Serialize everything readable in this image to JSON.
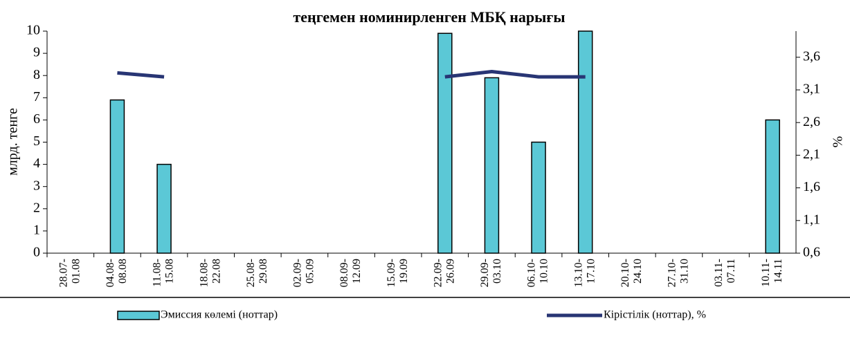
{
  "chart_data": {
    "type": "bar",
    "title": "теңгемен номинирленген МБҚ нарығы",
    "ylabel": "млрд. тенге",
    "y2label": "%",
    "categories": [
      [
        "28.07-",
        "01.08"
      ],
      [
        "04.08-",
        "08.08"
      ],
      [
        "11.08-",
        "15.08"
      ],
      [
        "18.08-",
        "22.08"
      ],
      [
        "25.08-",
        "29.08"
      ],
      [
        "02.09-",
        "05.09"
      ],
      [
        "08.09-",
        "12.09"
      ],
      [
        "15.09-",
        "19.09"
      ],
      [
        "22.09-",
        "26.09"
      ],
      [
        "29.09-",
        "03.10"
      ],
      [
        "06.10-",
        "10.10"
      ],
      [
        "13.10-",
        "17.10"
      ],
      [
        "20.10-",
        "24.10"
      ],
      [
        "27.10-",
        "31.10"
      ],
      [
        "03.11-",
        "07.11"
      ],
      [
        "10.11-",
        "14.11"
      ]
    ],
    "series": [
      {
        "name": "Эмиссия көлемі (ноттар)",
        "type": "bar",
        "color": "#5bc8d6",
        "values": [
          null,
          6.9,
          4,
          null,
          null,
          null,
          null,
          null,
          9.9,
          7.9,
          5,
          10,
          null,
          null,
          null,
          6
        ]
      },
      {
        "name": "Кірістілік (ноттар),  %",
        "type": "line",
        "axis": "y2",
        "color": "#283574",
        "values": [
          null,
          3.36,
          3.3,
          null,
          null,
          null,
          null,
          null,
          3.3,
          3.38,
          3.3,
          3.3,
          null,
          null,
          null,
          null
        ]
      }
    ],
    "ylim": [
      0,
      10
    ],
    "yticks": [
      0,
      1,
      2,
      3,
      4,
      5,
      6,
      7,
      8,
      9,
      10
    ],
    "y2lim": [
      0.6,
      4.0
    ],
    "y2ticks": [
      {
        "value": 0.6,
        "label": "0,6"
      },
      {
        "value": 1.1,
        "label": "1,1"
      },
      {
        "value": 1.6,
        "label": "1,6"
      },
      {
        "value": 2.1,
        "label": "2,1"
      },
      {
        "value": 2.6,
        "label": "2,6"
      },
      {
        "value": 3.1,
        "label": "3,1"
      },
      {
        "value": 3.6,
        "label": "3,6"
      }
    ]
  }
}
